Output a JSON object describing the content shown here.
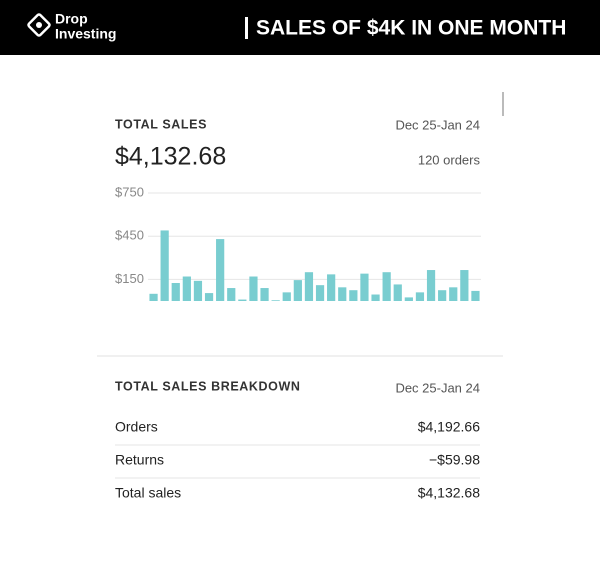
{
  "header": {
    "logo_top": "Drop",
    "logo_bottom": "Investing",
    "title": "SALES OF $4K IN ONE MONTH"
  },
  "total_sales": {
    "title": "TOTAL SALES",
    "date_range": "Dec 25-Jan 24",
    "amount": "$4,132.68",
    "orders": "120 orders"
  },
  "chart_data": {
    "type": "bar",
    "values": [
      50,
      490,
      125,
      170,
      140,
      55,
      430,
      90,
      10,
      170,
      90,
      5,
      60,
      145,
      200,
      110,
      185,
      95,
      75,
      190,
      45,
      200,
      115,
      25,
      60,
      215,
      75,
      95,
      215,
      70
    ],
    "color": "#79cdd0",
    "ylim": [
      0,
      750
    ],
    "yticks": [
      {
        "value": 150,
        "label": "$150"
      },
      {
        "value": 450,
        "label": "$450"
      },
      {
        "value": 750,
        "label": "$750"
      }
    ],
    "grid": true
  },
  "breakdown": {
    "title": "TOTAL SALES BREAKDOWN",
    "date_range": "Dec 25-Jan 24",
    "rows": [
      [
        "Orders",
        "$4,192.66"
      ],
      [
        "Returns",
        "−$59.98"
      ],
      [
        "Total sales",
        "$4,132.68"
      ]
    ]
  }
}
